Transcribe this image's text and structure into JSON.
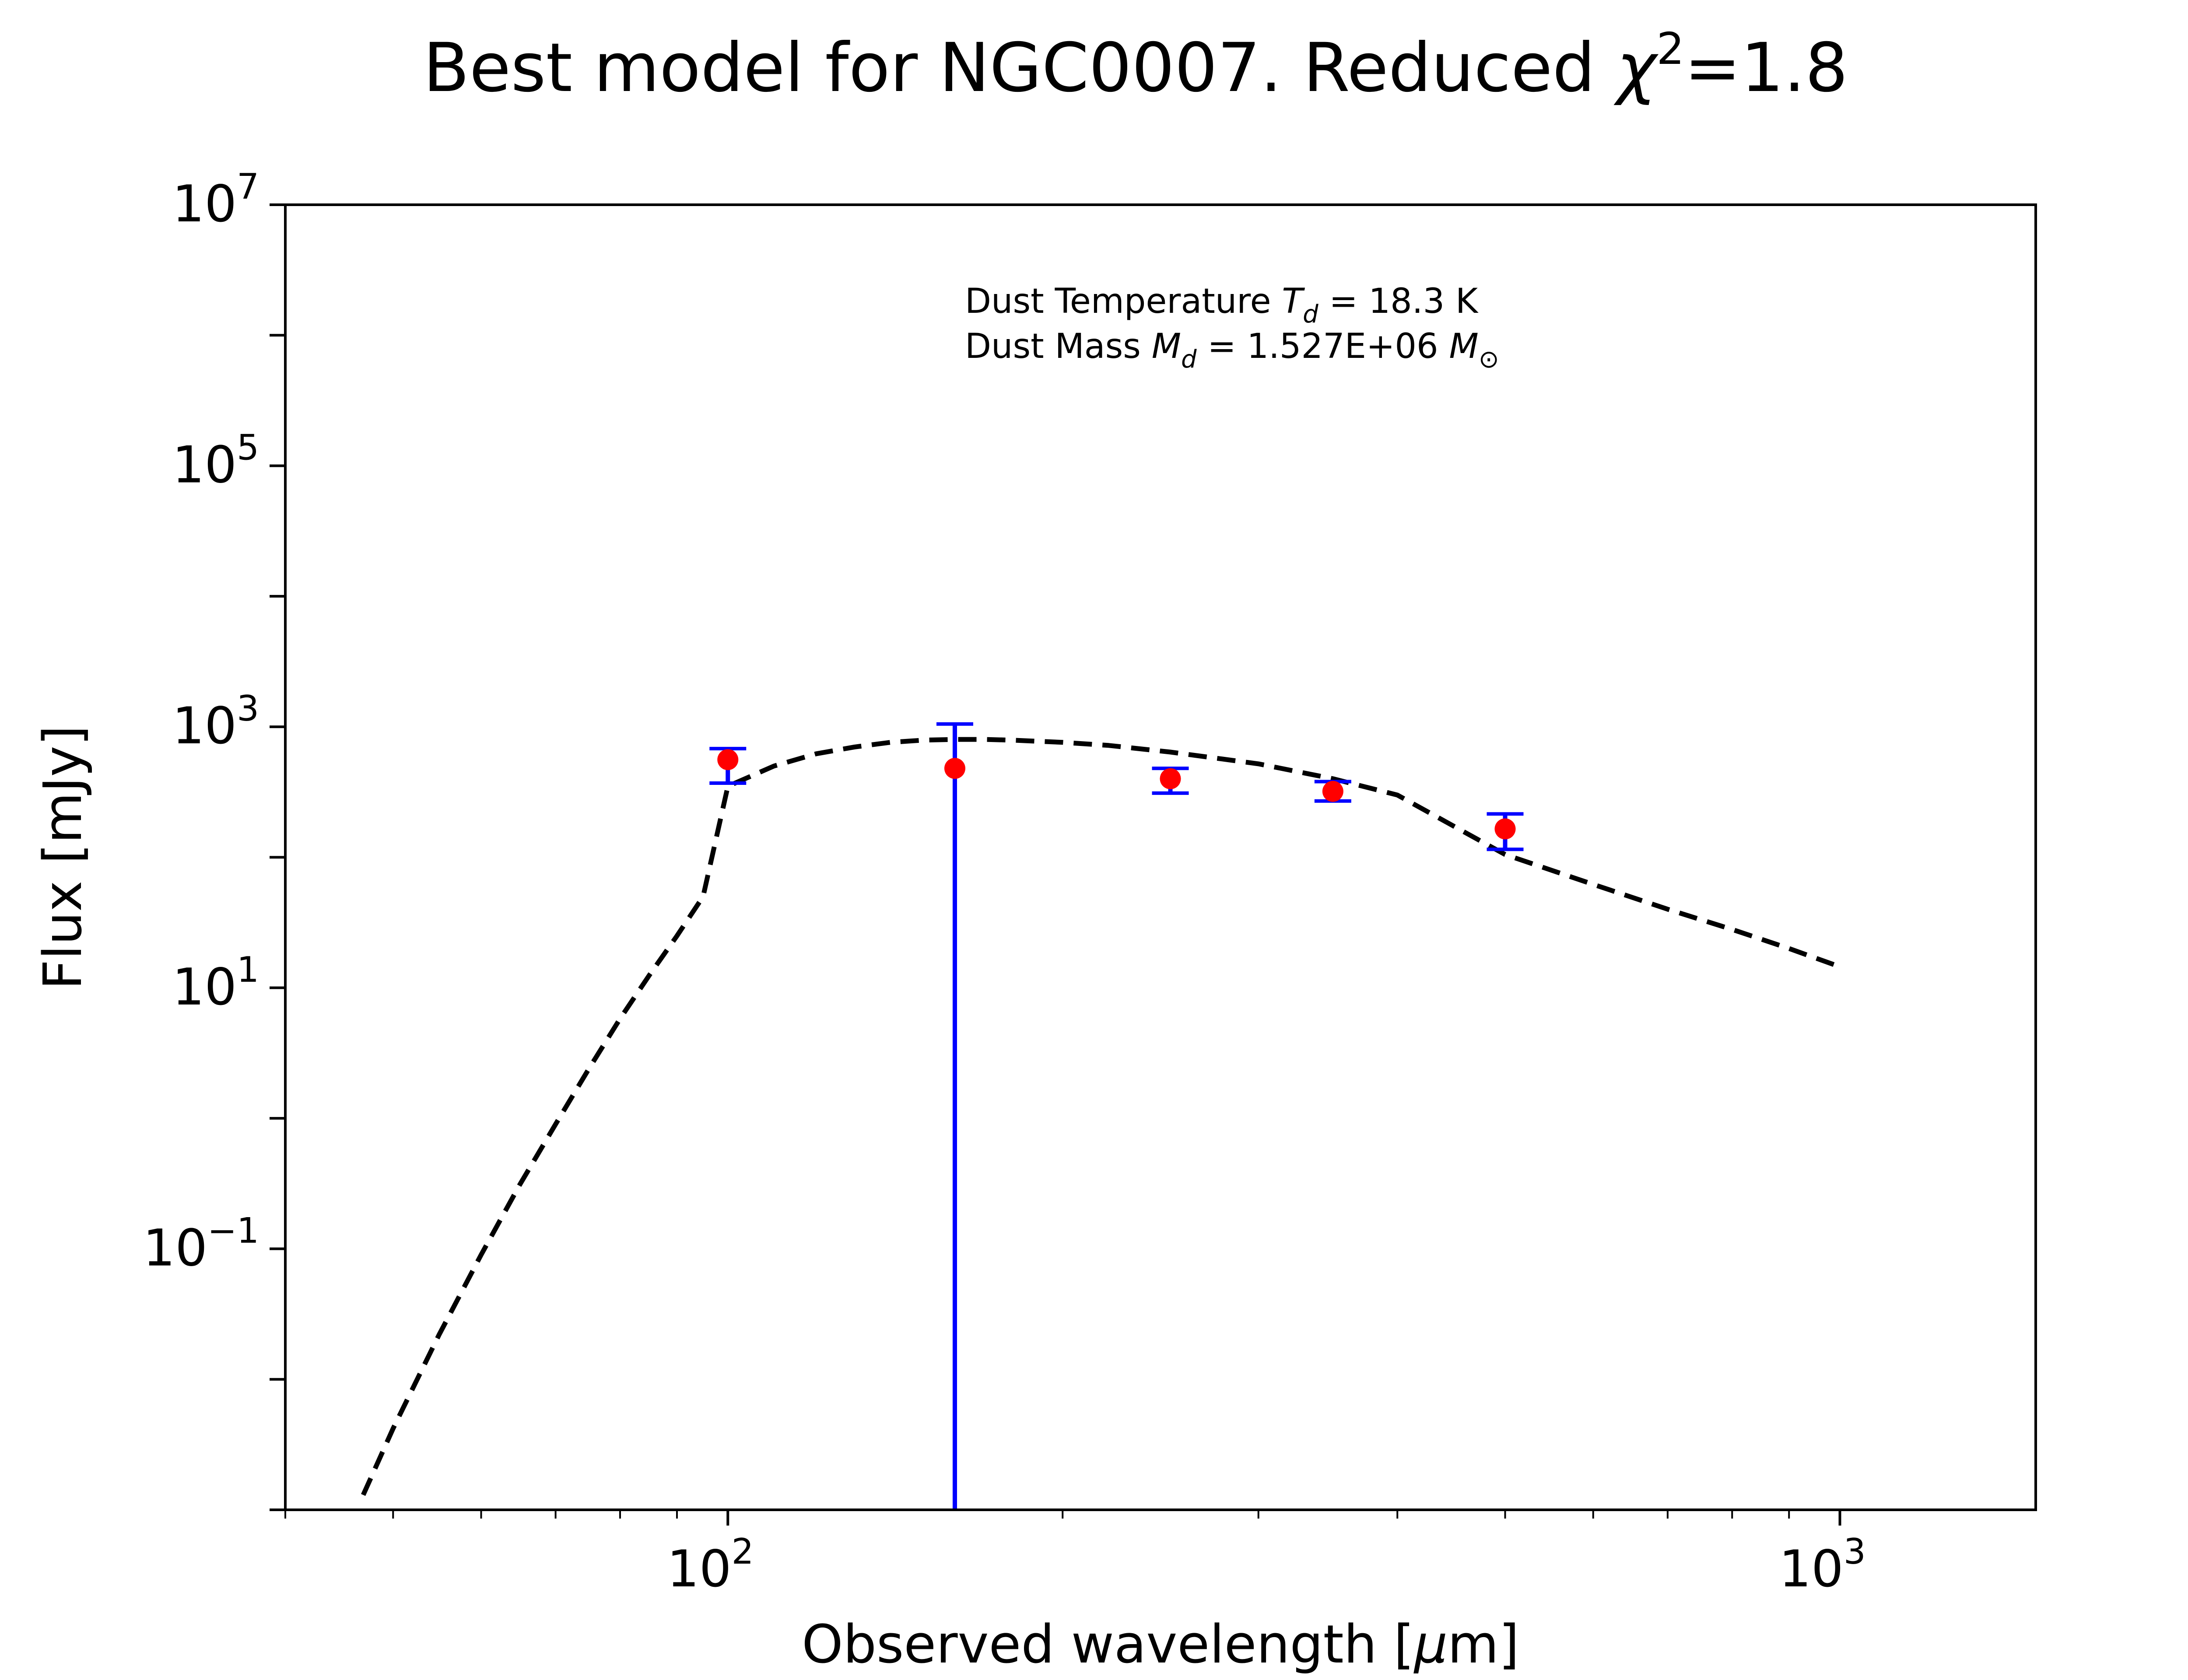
{
  "chart_data": {
    "type": "scatter",
    "title": "Best model for NGC0007. Reduced χ²=1.8",
    "title_parts": {
      "main": "Best model for NGC0007. Reduced ",
      "chi": "χ",
      "chi_exp": "2",
      "value": "=1.8"
    },
    "xlabel": "Observed wavelength [μm]",
    "xlabel_parts": {
      "pre": "Observed wavelength [",
      "mu": "μ",
      "post": "m]"
    },
    "ylabel": "Flux [mJy]",
    "x_scale": "log",
    "y_scale": "log",
    "xlim": [
      40,
      1500
    ],
    "ylim": [
      0.001,
      10000000
    ],
    "x_ticks": [
      {
        "value": 100,
        "base": "10",
        "exp": "2"
      },
      {
        "value": 1000,
        "base": "10",
        "exp": "3"
      }
    ],
    "y_ticks": [
      {
        "value": 0.1,
        "base": "10",
        "exp": "−1"
      },
      {
        "value": 10,
        "base": "10",
        "exp": "1"
      },
      {
        "value": 1000,
        "base": "10",
        "exp": "3"
      },
      {
        "value": 100000,
        "base": "10",
        "exp": "5"
      },
      {
        "value": 10000000,
        "base": "10",
        "exp": "7"
      }
    ],
    "annotations": [
      {
        "text": "Dust Temperature T_d = 18.3 K",
        "pre": "Dust Temperature ",
        "sym": "T",
        "sub": "d",
        "post": " = 18.3 K"
      },
      {
        "text": "Dust Mass M_d = 1.527E+06 M_⊙",
        "pre": "Dust Mass ",
        "sym": "M",
        "sub": "d",
        "post": " = 1.527E+06 ",
        "unit_sym": "M",
        "unit_sub": "⊙"
      }
    ],
    "observations": [
      {
        "x": 100,
        "y": 560,
        "err_low": 370,
        "err_high": 680
      },
      {
        "x": 160,
        "y": 480,
        "err_low": 0.001,
        "err_high": 1050
      },
      {
        "x": 250,
        "y": 400,
        "err_low": 310,
        "err_high": 480
      },
      {
        "x": 350,
        "y": 320,
        "err_low": 270,
        "err_high": 380
      },
      {
        "x": 500,
        "y": 165,
        "err_low": 115,
        "err_high": 215
      }
    ],
    "model_line": {
      "style": "dashed",
      "points": [
        [
          47,
          0.0013
        ],
        [
          50,
          0.0042
        ],
        [
          55,
          0.022
        ],
        [
          60,
          0.09
        ],
        [
          65,
          0.31
        ],
        [
          70,
          0.9
        ],
        [
          75,
          2.4
        ],
        [
          80,
          5.8
        ],
        [
          85,
          12.5
        ],
        [
          90,
          25
        ],
        [
          95,
          50
        ],
        [
          100,
          350
        ],
        [
          110,
          500
        ],
        [
          120,
          620
        ],
        [
          130,
          700
        ],
        [
          140,
          760
        ],
        [
          150,
          790
        ],
        [
          160,
          800
        ],
        [
          170,
          800
        ],
        [
          180,
          790
        ],
        [
          200,
          760
        ],
        [
          220,
          720
        ],
        [
          250,
          640
        ],
        [
          300,
          520
        ],
        [
          350,
          400
        ],
        [
          400,
          300
        ],
        [
          500,
          105
        ],
        [
          600,
          62
        ],
        [
          700,
          40
        ],
        [
          800,
          28
        ],
        [
          900,
          20
        ],
        [
          1000,
          14.5
        ]
      ]
    },
    "colors": {
      "marker": "#ff0000",
      "errorbar": "#0000ff",
      "model": "#000000"
    },
    "grid": false,
    "legend": "none"
  }
}
